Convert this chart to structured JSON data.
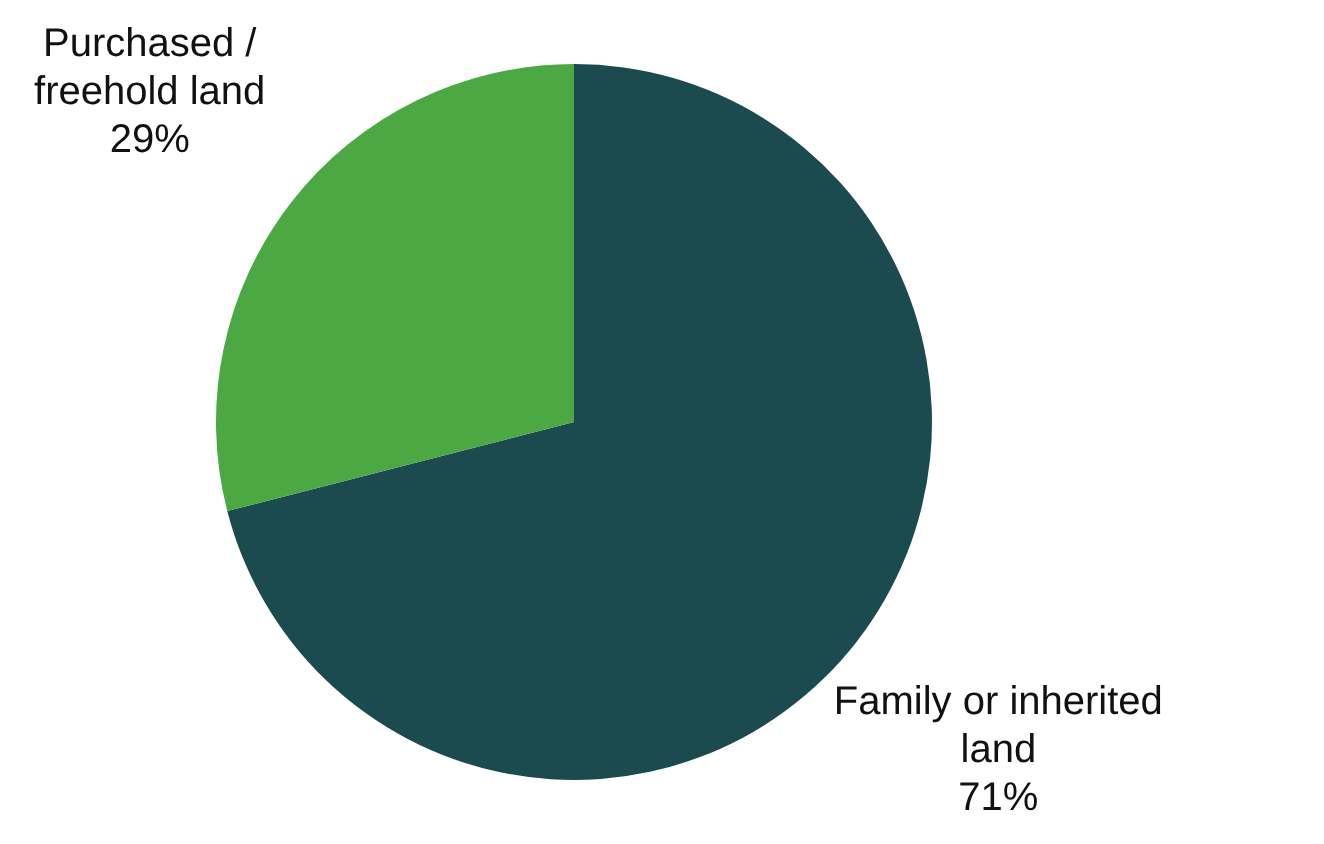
{
  "chart_data": {
    "type": "pie",
    "categories": [
      "Family or inherited land",
      "Purchased / freehold land"
    ],
    "values": [
      71,
      29
    ],
    "colors": [
      "#1b4a4f",
      "#4ba842"
    ],
    "value_labels": [
      "71%",
      "29%"
    ]
  }
}
